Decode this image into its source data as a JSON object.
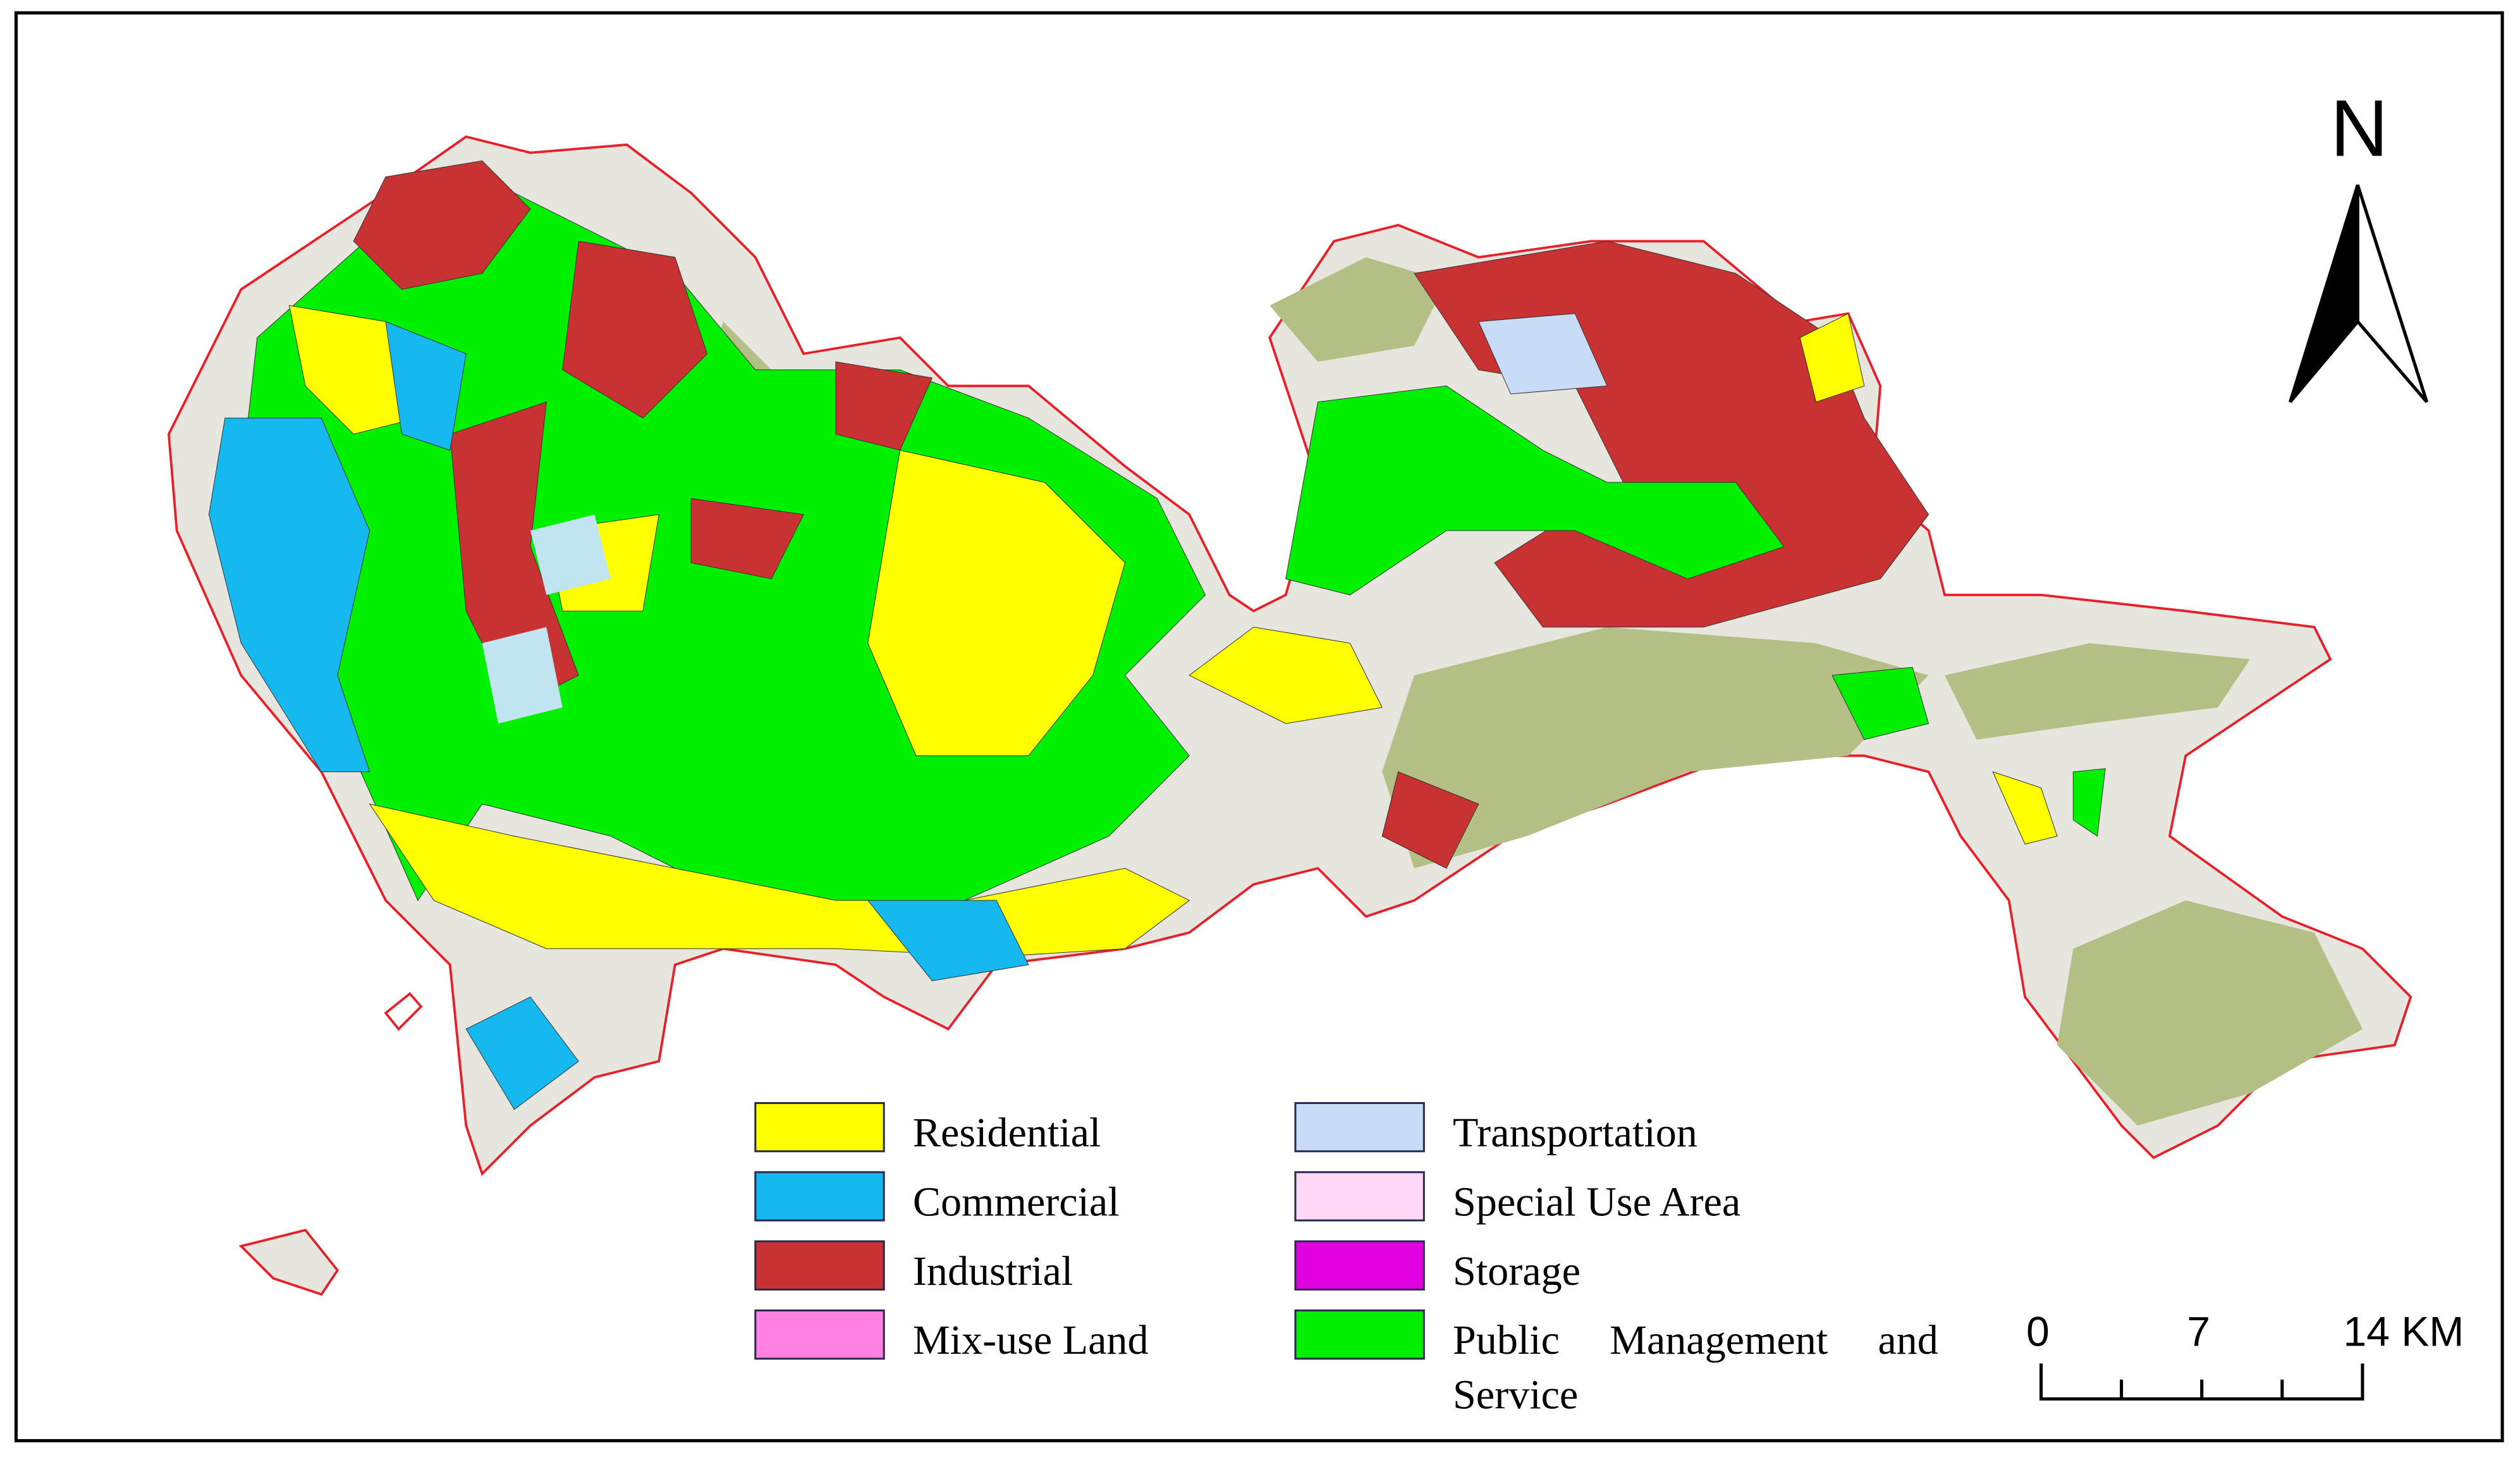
{
  "north_arrow": {
    "label": "N"
  },
  "legend": {
    "items": [
      {
        "label": "Residential",
        "color": "#ffff00"
      },
      {
        "label": "Commercial",
        "color": "#16b8f0"
      },
      {
        "label": "Industrial",
        "color": "#c83232"
      },
      {
        "label": "Mix-use Land",
        "color": "#ff80e0"
      },
      {
        "label": "Transportation",
        "color": "#c8dcf8"
      },
      {
        "label": "Special Use Area",
        "color": "#ffd8f8"
      },
      {
        "label": "Storage",
        "color": "#e000e0"
      },
      {
        "label": "Public Management and Service",
        "color": "#00f000"
      }
    ]
  },
  "scale_bar": {
    "labels": [
      "0",
      "7",
      "14 KM"
    ]
  }
}
